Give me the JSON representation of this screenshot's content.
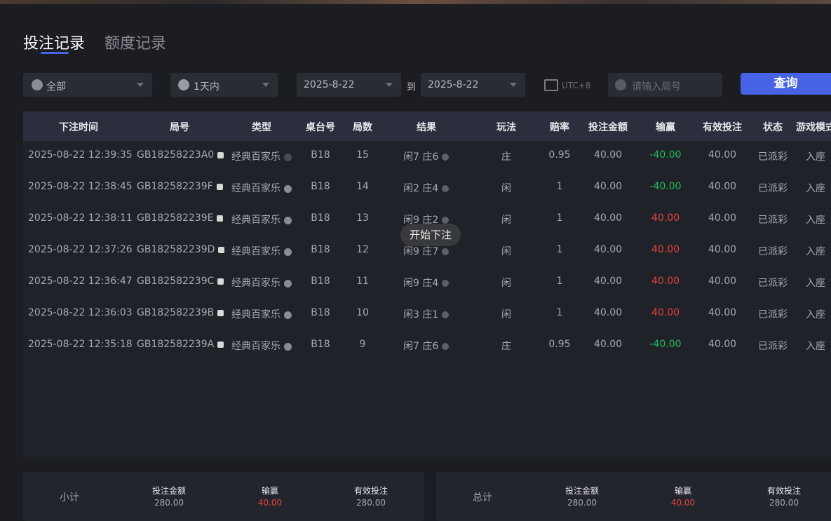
{
  "tabs": [
    "投注记录",
    "额度记录"
  ],
  "filters": {
    "game": "全部",
    "period": "1天内",
    "date_from": "2025-8-22",
    "to": "到",
    "date_to": "2025-8-22",
    "timezone": "UTC+8",
    "round_placeholder": "请输入局号",
    "query": "查询"
  },
  "table": {
    "headers": [
      "下注时间",
      "局号",
      "类型",
      "桌台号",
      "局数",
      "结果",
      "玩法",
      "赔率",
      "投注金额",
      "输赢",
      "有效投注",
      "状态",
      "游戏模式"
    ],
    "rows": [
      [
        "2025-08-22 12:39:35",
        "GB18258223A0",
        "经典百家乐",
        "B18",
        "15",
        "闲7 庄6",
        "庄",
        "0.95",
        "40.00",
        "-40.00",
        "40.00",
        "已派彩",
        "入座"
      ],
      [
        "2025-08-22 12:38:45",
        "GB182582239F",
        "经典百家乐",
        "B18",
        "14",
        "闲2 庄4",
        "闲",
        "1",
        "40.00",
        "-40.00",
        "40.00",
        "已派彩",
        "入座"
      ],
      [
        "2025-08-22 12:38:11",
        "GB182582239E",
        "经典百家乐",
        "B18",
        "13",
        "闲9 庄2",
        "闲",
        "1",
        "40.00",
        "40.00",
        "40.00",
        "已派彩",
        "入座"
      ],
      [
        "2025-08-22 12:37:26",
        "GB182582239D",
        "经典百家乐",
        "B18",
        "12",
        "闲9 庄7",
        "闲",
        "1",
        "40.00",
        "40.00",
        "40.00",
        "已派彩",
        "入座"
      ],
      [
        "2025-08-22 12:36:47",
        "GB182582239C",
        "经典百家乐",
        "B18",
        "11",
        "闲9 庄4",
        "闲",
        "1",
        "40.00",
        "40.00",
        "40.00",
        "已派彩",
        "入座"
      ],
      [
        "2025-08-22 12:36:03",
        "GB182582239B",
        "经典百家乐",
        "B18",
        "10",
        "闲3 庄1",
        "闲",
        "1",
        "40.00",
        "40.00",
        "40.00",
        "已派彩",
        "入座"
      ],
      [
        "2025-08-22 12:35:18",
        "GB182582239A",
        "经典百家乐",
        "B18",
        "9",
        "闲7 庄6",
        "庄",
        "0.95",
        "40.00",
        "-40.00",
        "40.00",
        "已派彩",
        "入座"
      ]
    ]
  },
  "toast": "开始下注",
  "summary": [
    {
      "label": "小计",
      "items": [
        {
          "label": "投注金额",
          "value": "280.00"
        },
        {
          "label": "输赢",
          "value": "40.00"
        },
        {
          "label": "有效投注",
          "value": "280.00"
        }
      ]
    },
    {
      "label": "总计",
      "items": [
        {
          "label": "投注金额",
          "value": "280.00"
        },
        {
          "label": "输赢",
          "value": "40.00"
        },
        {
          "label": "有效投注",
          "value": "280.00"
        }
      ]
    }
  ]
}
